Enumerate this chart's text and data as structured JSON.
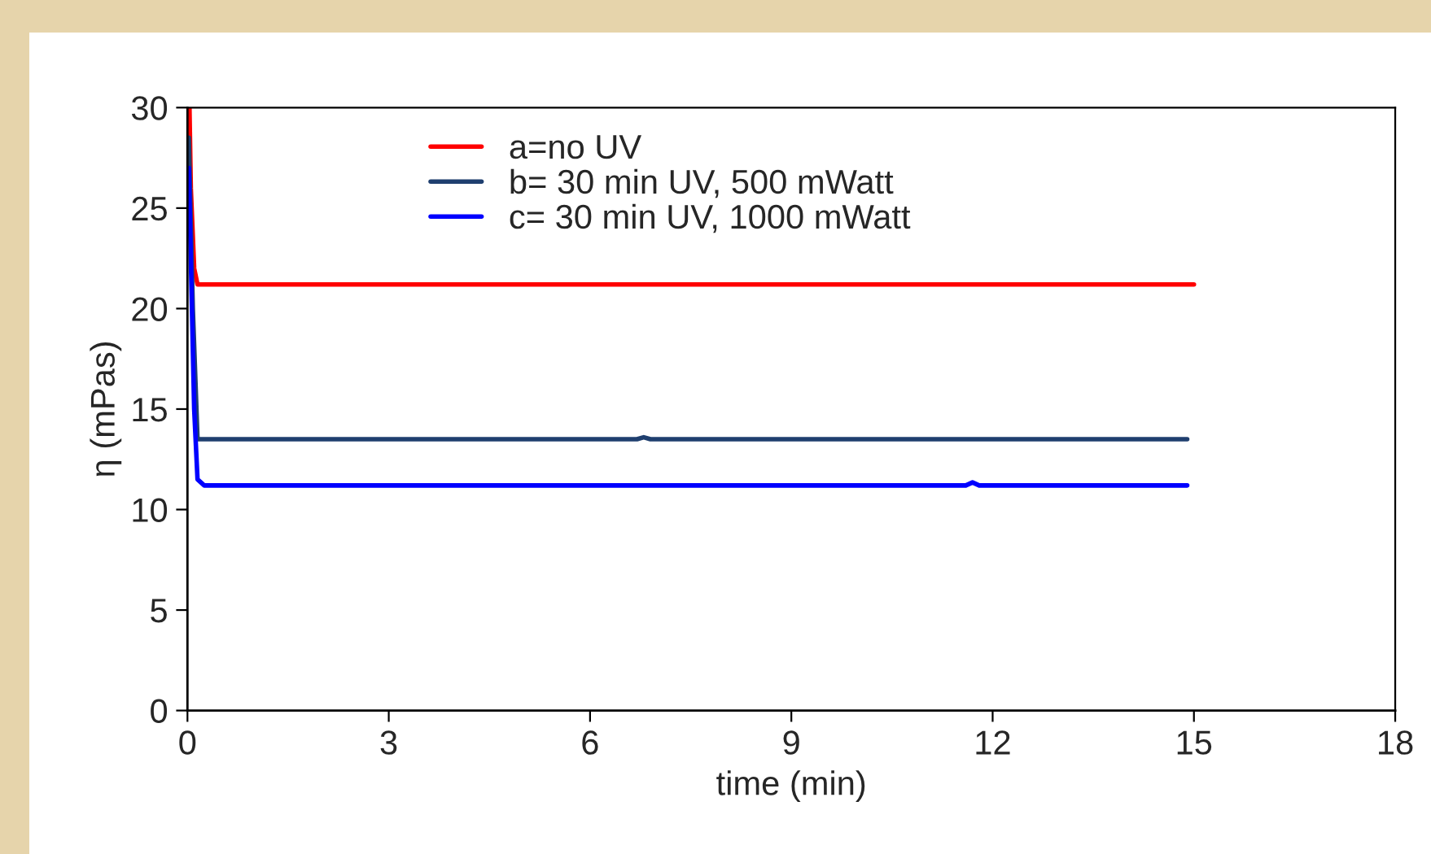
{
  "chart_data": {
    "type": "line",
    "xlabel": "time (min)",
    "ylabel": "η (mPas)",
    "xlim": [
      0,
      18
    ],
    "xticks": [
      0,
      3,
      6,
      9,
      12,
      15,
      18
    ],
    "ylim": [
      0,
      30
    ],
    "yticks": [
      0,
      5,
      10,
      15,
      20,
      25,
      30
    ],
    "grid": false,
    "legend": "top",
    "marker": "none",
    "line_style": "solid",
    "series": [
      {
        "name": "a=no UV",
        "color": "#ff0000",
        "x": [
          0.03,
          0.05,
          0.1,
          0.15,
          4.3,
          5.5,
          15
        ],
        "values": [
          30,
          26,
          22,
          21.2,
          21.2,
          21.2,
          21.2
        ]
      },
      {
        "name": "b= 30 min UV, 500 mWatt",
        "color": "#1f3f6f",
        "x": [
          0.02,
          0.08,
          0.15,
          6.7,
          6.8,
          6.9,
          14.9
        ],
        "values": [
          28.5,
          20,
          13.5,
          13.5,
          13.6,
          13.5,
          13.5
        ]
      },
      {
        "name": "c= 30 min UV, 1000 mWatt",
        "color": "#0000ff",
        "x": [
          0.02,
          0.1,
          0.15,
          0.25,
          11.6,
          11.7,
          11.8,
          14.9
        ],
        "values": [
          27,
          15,
          11.5,
          11.2,
          11.2,
          11.35,
          11.2,
          11.2
        ]
      }
    ]
  }
}
